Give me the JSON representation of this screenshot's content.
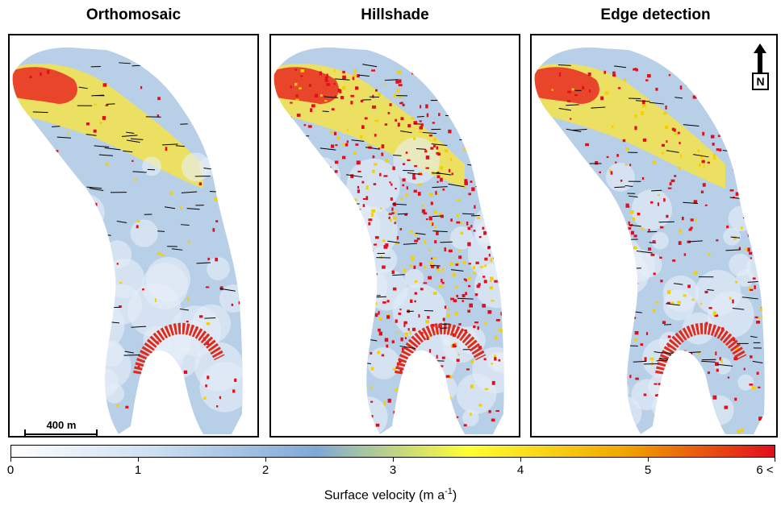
{
  "panels": [
    {
      "title": "Orthomosaic"
    },
    {
      "title": "Hillshade"
    },
    {
      "title": "Edge detection"
    }
  ],
  "scale_bar": {
    "label": "400 m"
  },
  "north_arrow": {
    "label": "N"
  },
  "colorbar": {
    "title": "Surface velocity (m a",
    "title_exponent": "-1",
    "title_suffix": ")",
    "ticks": [
      "0",
      "1",
      "2",
      "3",
      "4",
      "5",
      "6 <"
    ],
    "range": [
      0,
      6
    ],
    "colors": [
      "#ffffff",
      "#c9dcef",
      "#7fa8d6",
      "#ffff33",
      "#f0a800",
      "#e20e1c"
    ]
  },
  "legend_colors": {
    "low": "#ffffff",
    "mid": "#8db0da",
    "high": "#e20e1c"
  }
}
